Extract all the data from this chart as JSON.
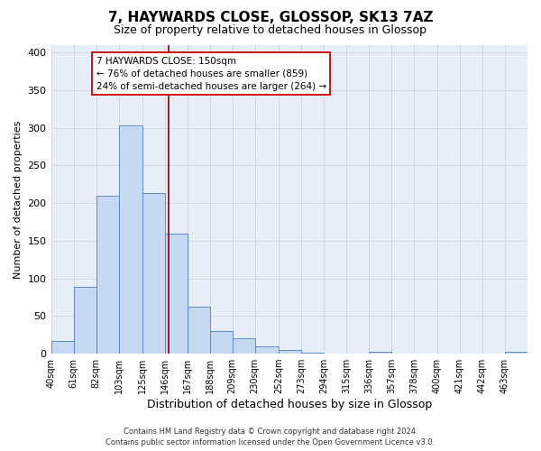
{
  "title": "7, HAYWARDS CLOSE, GLOSSOP, SK13 7AZ",
  "subtitle": "Size of property relative to detached houses in Glossop",
  "xlabel": "Distribution of detached houses by size in Glossop",
  "ylabel": "Number of detached properties",
  "bar_edges": [
    40,
    61,
    82,
    103,
    125,
    146,
    167,
    188,
    209,
    230,
    252,
    273,
    294,
    315,
    336,
    357,
    378,
    400,
    421,
    442,
    463
  ],
  "bar_heights": [
    17,
    89,
    210,
    303,
    213,
    160,
    63,
    30,
    20,
    10,
    5,
    1,
    0,
    0,
    2,
    0,
    0,
    0,
    0,
    0,
    2
  ],
  "bar_color": "#c6d9f0",
  "bar_edge_color": "#5b8bd0",
  "grid_color": "#d0d8e8",
  "bg_color": "#e8eef8",
  "vline_x": 150,
  "vline_color": "#8b0000",
  "ylim": [
    0,
    410
  ],
  "yticks": [
    0,
    50,
    100,
    150,
    200,
    250,
    300,
    350,
    400
  ],
  "annotation_title": "7 HAYWARDS CLOSE: 150sqm",
  "annotation_line1": "← 76% of detached houses are smaller (859)",
  "annotation_line2": "24% of semi-detached houses are larger (264) →",
  "annotation_box_color": "#ffffff",
  "annotation_box_edge": "#cc0000",
  "footer_line1": "Contains HM Land Registry data © Crown copyright and database right 2024.",
  "footer_line2": "Contains public sector information licensed under the Open Government Licence v3.0.",
  "title_fontsize": 11,
  "subtitle_fontsize": 9,
  "tick_label_fontsize": 7,
  "ylabel_fontsize": 8,
  "xlabel_fontsize": 9,
  "annotation_fontsize": 7.5,
  "footer_fontsize": 6
}
